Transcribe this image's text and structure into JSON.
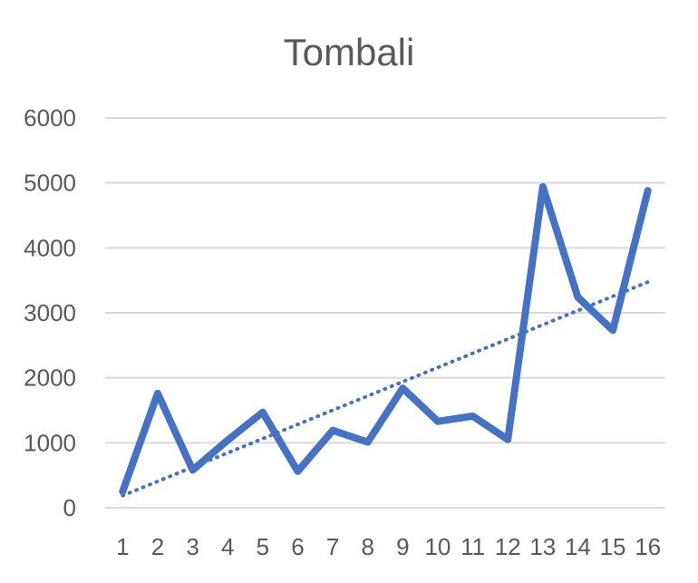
{
  "chart_data": {
    "type": "line",
    "title": "Tombali",
    "xlabel": "",
    "ylabel": "",
    "categories": [
      "1",
      "2",
      "3",
      "4",
      "5",
      "6",
      "7",
      "8",
      "9",
      "10",
      "11",
      "12",
      "13",
      "14",
      "15",
      "16"
    ],
    "series": [
      {
        "values": [
          250,
          1760,
          580,
          1040,
          1470,
          560,
          1190,
          1010,
          1840,
          1330,
          1410,
          1050,
          4940,
          3240,
          2730,
          4880
        ],
        "color": "#4472c4",
        "style": "solid"
      }
    ],
    "trendline": {
      "kind": "linear",
      "style": "dotted",
      "color": "#4472c4"
    },
    "y_ticks": [
      "0",
      "1000",
      "2000",
      "3000",
      "4000",
      "5000",
      "6000"
    ],
    "ylim": [
      0,
      6000
    ],
    "grid": true,
    "legend": "none"
  }
}
